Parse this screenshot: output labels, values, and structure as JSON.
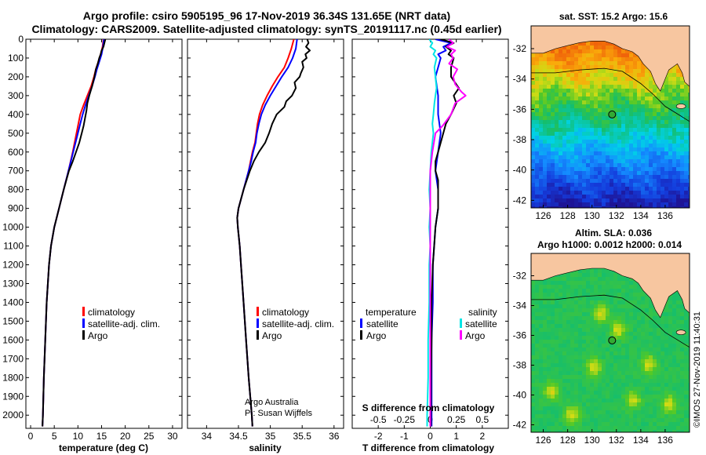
{
  "header": {
    "title_line1": "Argo profile: csiro 5905195_96 17-Nov-2019 36.34S 131.65E (NRT data)",
    "title_line2": "Climatology: CARS2009. Satellite-adjusted climatology: synTS_20191117.nc (0.45d earlier)"
  },
  "colors": {
    "climatology": "#ff0000",
    "satellite_adj": "#0000ff",
    "argo": "#000000",
    "salinity_climatology": "#ff00ff",
    "salinity_satellite": "#00e5e5",
    "land": "#f7c6a0",
    "marker_fill": "#33aa33"
  },
  "footer": {
    "credit_line1": "Argo Australia",
    "credit_line2": "PI: Susan Wijffels",
    "timestamp": "©IMOS 27-Nov-2019 11:40:31"
  },
  "chart_data": [
    {
      "id": "temperature",
      "type": "line",
      "title": "",
      "xlabel": "temperature (deg C)",
      "ylabel": "",
      "xlim": [
        -1,
        32
      ],
      "ylim": [
        2070,
        0
      ],
      "xticks": [
        0,
        5,
        10,
        15,
        20,
        25,
        30
      ],
      "xtick_labels": [
        "0",
        "5",
        "10",
        "15",
        "20",
        "25",
        "30"
      ],
      "yticks": [
        0,
        100,
        200,
        300,
        400,
        500,
        600,
        700,
        800,
        900,
        1000,
        1100,
        1200,
        1300,
        1400,
        1500,
        1600,
        1700,
        1800,
        1900,
        2000
      ],
      "ytick_labels": [
        "0",
        "100",
        "200",
        "300",
        "400",
        "500",
        "600",
        "700",
        "800",
        "900",
        "1000",
        "1100",
        "1200",
        "1300",
        "1400",
        "1500",
        "1600",
        "1700",
        "1800",
        "1900",
        "2000"
      ],
      "legend": [
        "climatology",
        "satellite-adj. clim.",
        "Argo"
      ],
      "series": [
        {
          "name": "climatology",
          "color": "#ff0000",
          "depth": [
            0,
            40,
            80,
            120,
            160,
            200,
            250,
            300,
            350,
            400,
            450,
            500,
            600,
            700,
            800,
            900,
            1000,
            1100,
            1200,
            1400,
            1600,
            1800,
            2000,
            2060
          ],
          "values": [
            15.4,
            15.2,
            14.8,
            14.3,
            13.8,
            13.4,
            12.8,
            12.0,
            11.2,
            10.5,
            10.1,
            9.7,
            8.9,
            8.0,
            7.0,
            6.0,
            5.0,
            4.3,
            3.9,
            3.4,
            3.1,
            2.8,
            2.6,
            2.5
          ]
        },
        {
          "name": "satellite-adj. clim.",
          "color": "#0000ff",
          "depth": [
            0,
            40,
            80,
            120,
            160,
            200,
            250,
            300,
            350,
            400,
            450,
            500,
            600,
            700,
            800,
            900,
            1000,
            1100,
            1200,
            1400,
            1600,
            1800,
            2000,
            2060
          ],
          "values": [
            15.5,
            15.3,
            15.0,
            14.5,
            14.0,
            13.6,
            13.0,
            12.3,
            11.6,
            11.0,
            10.5,
            10.0,
            9.0,
            8.0,
            7.0,
            6.0,
            5.0,
            4.3,
            3.9,
            3.4,
            3.1,
            2.8,
            2.6,
            2.5
          ]
        },
        {
          "name": "Argo",
          "color": "#000000",
          "depth": [
            0,
            20,
            40,
            60,
            80,
            100,
            130,
            160,
            200,
            250,
            300,
            340,
            380,
            420,
            460,
            500,
            550,
            600,
            650,
            700,
            800,
            900,
            1000,
            1100,
            1200,
            1400,
            1600,
            1800,
            2000,
            2060
          ],
          "values": [
            15.8,
            15.6,
            15.4,
            15.0,
            14.8,
            14.5,
            14.2,
            13.8,
            13.5,
            13.0,
            12.4,
            12.0,
            11.8,
            11.5,
            11.2,
            10.8,
            10.3,
            9.6,
            8.9,
            8.1,
            7.0,
            6.0,
            5.0,
            4.3,
            3.9,
            3.4,
            3.1,
            2.8,
            2.6,
            2.5
          ]
        }
      ]
    },
    {
      "id": "salinity",
      "type": "line",
      "xlabel": "salinity",
      "xlim": [
        33.7,
        36.15
      ],
      "ylim": [
        2070,
        0
      ],
      "xticks": [
        34,
        34.5,
        35,
        35.5,
        36
      ],
      "xtick_labels": [
        "34",
        "34.5",
        "35",
        "35.5",
        "36"
      ],
      "legend": [
        "climatology",
        "satellite-adj. clim.",
        "Argo"
      ],
      "series": [
        {
          "name": "climatology",
          "color": "#ff0000",
          "depth": [
            0,
            50,
            100,
            150,
            200,
            250,
            300,
            350,
            400,
            450,
            500,
            550,
            600,
            650,
            700,
            800,
            900,
            950,
            1000,
            1100,
            1200,
            1400,
            1600,
            1800,
            2000,
            2060
          ],
          "values": [
            35.37,
            35.33,
            35.28,
            35.22,
            35.12,
            35.03,
            34.95,
            34.88,
            34.83,
            34.8,
            34.78,
            34.76,
            34.72,
            34.69,
            34.66,
            34.58,
            34.5,
            34.48,
            34.49,
            34.52,
            34.54,
            34.58,
            34.62,
            34.66,
            34.71,
            34.72
          ]
        },
        {
          "name": "satellite-adj. clim.",
          "color": "#0000ff",
          "depth": [
            0,
            50,
            100,
            150,
            200,
            250,
            300,
            350,
            400,
            450,
            500,
            550,
            600,
            650,
            700,
            800,
            900,
            950,
            1000,
            1100,
            1200,
            1400,
            1600,
            1800,
            2000,
            2060
          ],
          "values": [
            35.42,
            35.4,
            35.35,
            35.28,
            35.18,
            35.09,
            35.0,
            34.92,
            34.86,
            34.82,
            34.79,
            34.77,
            34.73,
            34.7,
            34.66,
            34.58,
            34.5,
            34.48,
            34.49,
            34.52,
            34.54,
            34.58,
            34.62,
            34.66,
            34.71,
            34.72
          ]
        },
        {
          "name": "Argo",
          "color": "#000000",
          "depth": [
            0,
            20,
            40,
            60,
            80,
            100,
            120,
            150,
            180,
            200,
            230,
            260,
            300,
            330,
            360,
            400,
            450,
            500,
            550,
            600,
            650,
            700,
            800,
            900,
            950,
            1000,
            1100,
            1200,
            1400,
            1600,
            1800,
            2000,
            2060
          ],
          "values": [
            35.58,
            35.6,
            35.56,
            35.62,
            35.55,
            35.57,
            35.5,
            35.52,
            35.48,
            35.46,
            35.38,
            35.4,
            35.34,
            35.25,
            35.22,
            35.1,
            35.03,
            34.98,
            34.92,
            34.82,
            34.74,
            34.68,
            34.58,
            34.5,
            34.48,
            34.49,
            34.52,
            34.54,
            34.58,
            34.62,
            34.66,
            34.71,
            34.72
          ]
        }
      ]
    },
    {
      "id": "difference",
      "type": "line",
      "xlabel": "T difference from climatology",
      "xlabel_top": "S difference from climatology",
      "xlim": [
        -3,
        3
      ],
      "ylim": [
        2070,
        0
      ],
      "xticks": [
        -2,
        -1,
        0,
        1,
        2
      ],
      "xtick_labels": [
        "-2",
        "-1",
        "0",
        "1",
        "2"
      ],
      "xticks_top": [
        -0.5,
        -0.25,
        0,
        0.25,
        0.5
      ],
      "xtick_labels_top": [
        "-0.5",
        "-0.25",
        "0",
        "0.25",
        "0.5"
      ],
      "legend_temperature_title": "temperature",
      "legend_salinity_title": "salinity",
      "legend": [
        "satellite",
        "Argo"
      ],
      "series": [
        {
          "name": "temperature satellite",
          "color": "#0000ff",
          "depth": [
            0,
            20,
            40,
            60,
            80,
            100,
            150,
            200,
            300,
            400,
            500,
            600,
            700,
            800,
            900,
            1000,
            1200,
            1400,
            1600,
            1800,
            2000,
            2060
          ],
          "values": [
            0.2,
            0.8,
            0.5,
            0.6,
            0.3,
            0.4,
            0.3,
            0.2,
            0.3,
            0.3,
            0.4,
            0.3,
            0.2,
            0.3,
            0.3,
            0.2,
            0.1,
            0.1,
            0.05,
            0.05,
            0.05,
            0.05
          ]
        },
        {
          "name": "temperature Argo",
          "color": "#000000",
          "depth": [
            0,
            20,
            40,
            60,
            80,
            100,
            150,
            200,
            260,
            300,
            340,
            400,
            450,
            500,
            550,
            600,
            650,
            700,
            750,
            800,
            900,
            1000,
            1100,
            1200,
            1400,
            1600,
            1800,
            2000,
            2060
          ],
          "values": [
            0.4,
            0.9,
            0.6,
            0.8,
            0.7,
            0.9,
            0.8,
            0.8,
            1.1,
            0.9,
            1.0,
            0.8,
            0.6,
            0.5,
            0.4,
            0.3,
            0.2,
            0.2,
            0.3,
            0.3,
            0.3,
            0.2,
            0.15,
            0.1,
            0.05,
            0.05,
            0.03,
            0.02,
            0.02
          ]
        },
        {
          "name": "salinity satellite",
          "color": "#00e5e5",
          "depth": [
            0,
            20,
            40,
            60,
            80,
            100,
            150,
            200,
            260,
            300,
            340,
            400,
            450,
            500,
            600,
            700,
            800,
            900,
            1000,
            1100,
            1200,
            1400,
            1600,
            1800,
            2000,
            2060
          ],
          "values": [
            -0.01,
            0.02,
            0.0,
            0.05,
            0.03,
            0.06,
            0.04,
            0.05,
            0.06,
            0.05,
            0.04,
            0.03,
            0.02,
            0.03,
            0.01,
            0.0,
            -0.01,
            0.0,
            -0.01,
            0.0,
            -0.01,
            -0.01,
            -0.02,
            -0.02,
            -0.03,
            -0.03
          ]
        },
        {
          "name": "salinity Argo",
          "color": "#ff00ff",
          "depth": [
            0,
            20,
            40,
            60,
            80,
            100,
            130,
            160,
            200,
            240,
            280,
            300,
            340,
            400,
            460,
            500,
            600,
            700,
            800,
            900,
            1000,
            1100,
            1200,
            1400,
            1600,
            1800,
            2000,
            2060
          ],
          "values": [
            0.18,
            0.22,
            0.16,
            0.24,
            0.2,
            0.22,
            0.18,
            0.26,
            0.22,
            0.24,
            0.3,
            0.34,
            0.24,
            0.2,
            0.12,
            0.05,
            0.02,
            0.0,
            0.0,
            0.0,
            0.0,
            0.0,
            0.0,
            0.0,
            0.0,
            0.0,
            0.0,
            0.0
          ]
        }
      ]
    },
    {
      "id": "sst_map",
      "type": "heatmap",
      "title": "sat. SST: 15.2 Argo: 15.6",
      "xlim": [
        125,
        138
      ],
      "ylim": [
        -42.5,
        -30.5
      ],
      "xticks": [
        126,
        128,
        130,
        132,
        134,
        136
      ],
      "xtick_labels": [
        "126",
        "128",
        "130",
        "132",
        "134",
        "136"
      ],
      "yticks": [
        -32,
        -34,
        -36,
        -38,
        -40,
        -42
      ],
      "ytick_labels": [
        "-32",
        "-34",
        "-36",
        "-38",
        "-40",
        "-42"
      ],
      "marker": {
        "lon": 131.65,
        "lat": -36.34
      }
    },
    {
      "id": "sla_map",
      "type": "heatmap",
      "title": "Altim. SLA: 0.036",
      "subtitle": "Argo h1000: 0.0012 h2000: 0.014",
      "xlim": [
        125,
        138
      ],
      "ylim": [
        -42.5,
        -30.5
      ],
      "xticks": [
        126,
        128,
        130,
        132,
        134,
        136
      ],
      "xtick_labels": [
        "126",
        "128",
        "130",
        "132",
        "134",
        "136"
      ],
      "yticks": [
        -32,
        -34,
        -36,
        -38,
        -40,
        -42
      ],
      "ytick_labels": [
        "-32",
        "-34",
        "-36",
        "-38",
        "-40",
        "-42"
      ],
      "marker": {
        "lon": 131.65,
        "lat": -36.34
      }
    }
  ]
}
